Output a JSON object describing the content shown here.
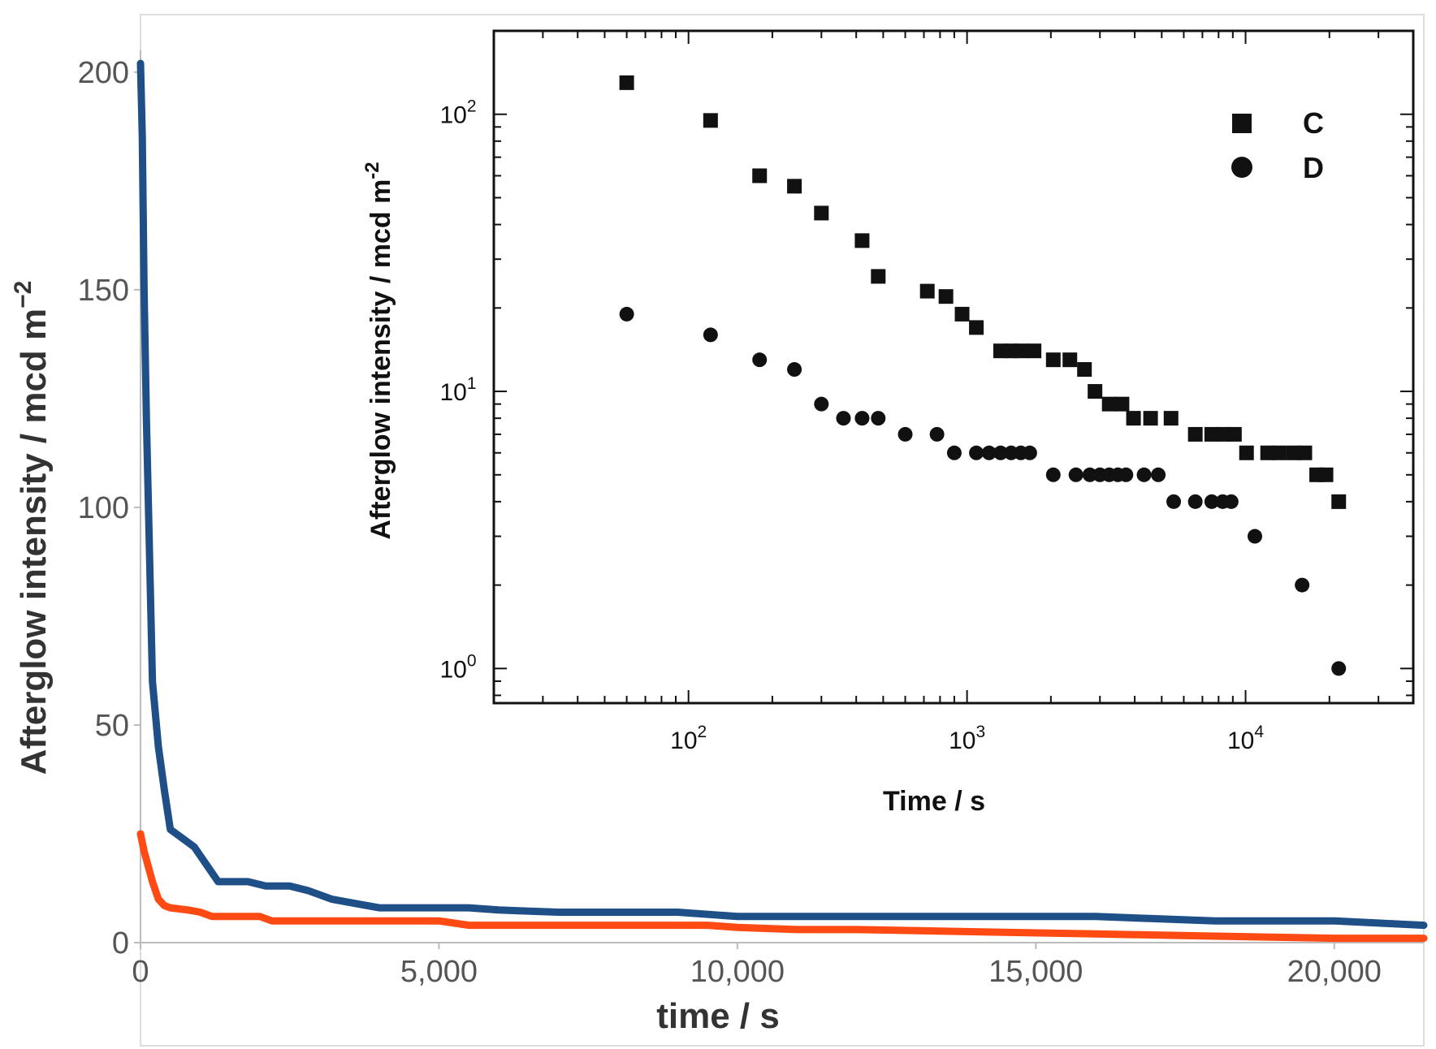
{
  "chart_data": [
    {
      "type": "line",
      "role": "main",
      "xlabel": "time / s",
      "ylabel_text": "Afterglow intensity / mcd m",
      "ylabel_exponent": "−2",
      "xlim": [
        0,
        21500
      ],
      "ylim": [
        0,
        205
      ],
      "x_ticks": [
        0,
        5000,
        10000,
        15000,
        20000
      ],
      "x_tick_labels": [
        "0",
        "5,000",
        "10,000",
        "15,000",
        "20,000"
      ],
      "y_ticks": [
        0,
        50,
        100,
        150,
        200
      ],
      "y_tick_labels": [
        "0",
        "50",
        "100",
        "150",
        "200"
      ],
      "series": [
        {
          "name": "C",
          "color": "#1f4f87",
          "points": [
            [
              0,
              202
            ],
            [
              30,
              185
            ],
            [
              60,
              150
            ],
            [
              100,
              120
            ],
            [
              150,
              90
            ],
            [
              200,
              60
            ],
            [
              300,
              45
            ],
            [
              400,
              35
            ],
            [
              500,
              26
            ],
            [
              600,
              25
            ],
            [
              700,
              24
            ],
            [
              800,
              23
            ],
            [
              900,
              22
            ],
            [
              1000,
              20
            ],
            [
              1200,
              16
            ],
            [
              1300,
              14
            ],
            [
              1500,
              14
            ],
            [
              1800,
              14
            ],
            [
              2100,
              13
            ],
            [
              2500,
              13
            ],
            [
              2800,
              12
            ],
            [
              3200,
              10
            ],
            [
              3600,
              9
            ],
            [
              4000,
              8
            ],
            [
              5000,
              8
            ],
            [
              5500,
              8
            ],
            [
              6000,
              7.5
            ],
            [
              7000,
              7
            ],
            [
              8000,
              7
            ],
            [
              9000,
              7
            ],
            [
              10000,
              6
            ],
            [
              12000,
              6
            ],
            [
              14000,
              6
            ],
            [
              16000,
              6
            ],
            [
              17000,
              5.5
            ],
            [
              18000,
              5
            ],
            [
              20000,
              5
            ],
            [
              21500,
              4
            ]
          ]
        },
        {
          "name": "D",
          "color": "#ff4a14",
          "points": [
            [
              0,
              25
            ],
            [
              60,
              21
            ],
            [
              120,
              18
            ],
            [
              200,
              14
            ],
            [
              300,
              10
            ],
            [
              400,
              8.5
            ],
            [
              500,
              8
            ],
            [
              800,
              7.5
            ],
            [
              1000,
              7
            ],
            [
              1200,
              6
            ],
            [
              1500,
              6
            ],
            [
              2000,
              6
            ],
            [
              2200,
              5
            ],
            [
              3000,
              5
            ],
            [
              4000,
              5
            ],
            [
              5000,
              5
            ],
            [
              5500,
              4
            ],
            [
              8000,
              4
            ],
            [
              9500,
              4
            ],
            [
              10000,
              3.5
            ],
            [
              11000,
              3
            ],
            [
              12000,
              3
            ],
            [
              14000,
              2.5
            ],
            [
              16000,
              2
            ],
            [
              18000,
              1.5
            ],
            [
              20000,
              1
            ],
            [
              21500,
              1
            ]
          ]
        }
      ]
    },
    {
      "type": "scatter",
      "role": "inset",
      "xlabel": "Time / s",
      "ylabel_text": "Afterglow intensity / mcd m",
      "ylabel_exponent": "-2",
      "x_scale": "log",
      "y_scale": "log",
      "xlim": [
        20,
        40000
      ],
      "ylim": [
        0.75,
        200
      ],
      "x_major_ticks": [
        100,
        1000,
        10000
      ],
      "x_major_exponents": [
        "2",
        "3",
        "4"
      ],
      "y_major_ticks": [
        1,
        10,
        100
      ],
      "y_major_exponents": [
        "0",
        "1",
        "2"
      ],
      "tick_base": "10",
      "legend": [
        {
          "label": "C",
          "marker": "square"
        },
        {
          "label": "D",
          "marker": "circle"
        }
      ],
      "legend_position": "top-right",
      "series": [
        {
          "name": "C",
          "marker": "square",
          "color": "#111111",
          "points": [
            [
              60,
              130
            ],
            [
              120,
              95
            ],
            [
              180,
              60
            ],
            [
              240,
              55
            ],
            [
              300,
              44
            ],
            [
              420,
              35
            ],
            [
              480,
              26
            ],
            [
              720,
              23
            ],
            [
              840,
              22
            ],
            [
              960,
              19
            ],
            [
              1080,
              17
            ],
            [
              1320,
              14
            ],
            [
              1440,
              14
            ],
            [
              1560,
              14
            ],
            [
              1740,
              14
            ],
            [
              2040,
              13
            ],
            [
              2340,
              13
            ],
            [
              2640,
              12
            ],
            [
              2880,
              10
            ],
            [
              3240,
              9
            ],
            [
              3600,
              9
            ],
            [
              3960,
              8
            ],
            [
              4560,
              8
            ],
            [
              5400,
              8
            ],
            [
              6600,
              7
            ],
            [
              7560,
              7
            ],
            [
              8400,
              7
            ],
            [
              9120,
              7
            ],
            [
              10080,
              6
            ],
            [
              12000,
              6
            ],
            [
              13200,
              6
            ],
            [
              14880,
              6
            ],
            [
              16320,
              6
            ],
            [
              18000,
              5
            ],
            [
              19440,
              5
            ],
            [
              21600,
              4
            ]
          ]
        },
        {
          "name": "D",
          "marker": "circle",
          "color": "#111111",
          "points": [
            [
              60,
              19
            ],
            [
              120,
              16
            ],
            [
              180,
              13
            ],
            [
              240,
              12
            ],
            [
              300,
              9
            ],
            [
              360,
              8
            ],
            [
              420,
              8
            ],
            [
              480,
              8
            ],
            [
              600,
              7
            ],
            [
              780,
              7
            ],
            [
              900,
              6
            ],
            [
              1080,
              6
            ],
            [
              1200,
              6
            ],
            [
              1320,
              6
            ],
            [
              1440,
              6
            ],
            [
              1560,
              6
            ],
            [
              1680,
              6
            ],
            [
              2040,
              5
            ],
            [
              2460,
              5
            ],
            [
              2760,
              5
            ],
            [
              3000,
              5
            ],
            [
              3240,
              5
            ],
            [
              3480,
              5
            ],
            [
              3720,
              5
            ],
            [
              4320,
              5
            ],
            [
              4860,
              5
            ],
            [
              5520,
              4
            ],
            [
              6600,
              4
            ],
            [
              7560,
              4
            ],
            [
              8280,
              4
            ],
            [
              8880,
              4
            ],
            [
              10800,
              3
            ],
            [
              15960,
              2
            ],
            [
              21600,
              1
            ]
          ]
        }
      ]
    }
  ]
}
